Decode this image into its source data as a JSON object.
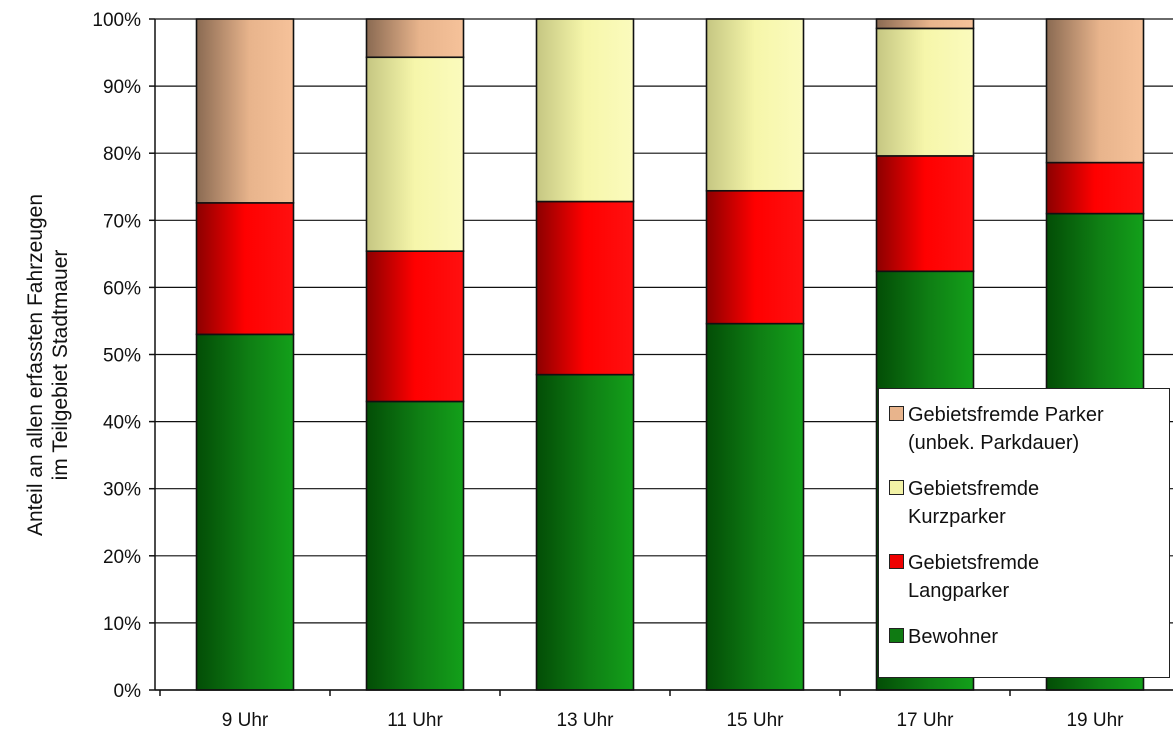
{
  "chart_data": {
    "type": "bar",
    "stacked": true,
    "categories": [
      "9 Uhr",
      "11 Uhr",
      "13 Uhr",
      "15 Uhr",
      "17 Uhr",
      "19 Uhr"
    ],
    "series": [
      {
        "name": "Bewohner",
        "color": "#0f7a12",
        "values": [
          53,
          43,
          47,
          54.6,
          62.4,
          71
        ]
      },
      {
        "name": "Gebietsfremde Langparker",
        "color": "#ee0000",
        "values": [
          19.6,
          22.4,
          25.8,
          19.8,
          17.2,
          7.6
        ]
      },
      {
        "name": "Gebietsfremde Kurzparker",
        "color": "#f2f2a6",
        "values": [
          0,
          28.9,
          27.2,
          25.6,
          19,
          0
        ]
      },
      {
        "name": "Gebietsfremde Parker (unbek. Parkdauer)",
        "color": "#e8b48c",
        "values": [
          27.4,
          5.7,
          0,
          0,
          1.4,
          21.4
        ]
      }
    ],
    "title": "",
    "xlabel": "",
    "ylabel": "Anteil an allen erfassten Fahrzeugen im Teilgebiet Stadtmauer",
    "ylabel_lines": [
      "Anteil an allen erfassten Fahrzeugen",
      "im Teilgebiet  Stadtmauer"
    ],
    "ylim": [
      0,
      100
    ],
    "yticks": [
      "0%",
      "10%",
      "20%",
      "30%",
      "40%",
      "50%",
      "60%",
      "70%",
      "80%",
      "90%",
      "100%"
    ],
    "grid": true,
    "legend_position": "bottom-right"
  },
  "legend": {
    "items": [
      {
        "swatch": "#e8b48c",
        "lines": [
          "Gebietsfremde Parker",
          "(unbek. Parkdauer)"
        ]
      },
      {
        "swatch": "#f2f2a6",
        "lines": [
          "Gebietsfremde",
          "Kurzparker"
        ]
      },
      {
        "swatch": "#ee0000",
        "lines": [
          "Gebietsfremde",
          "Langparker"
        ]
      },
      {
        "swatch": "#0f7a12",
        "lines": [
          "Bewohner"
        ]
      }
    ]
  }
}
